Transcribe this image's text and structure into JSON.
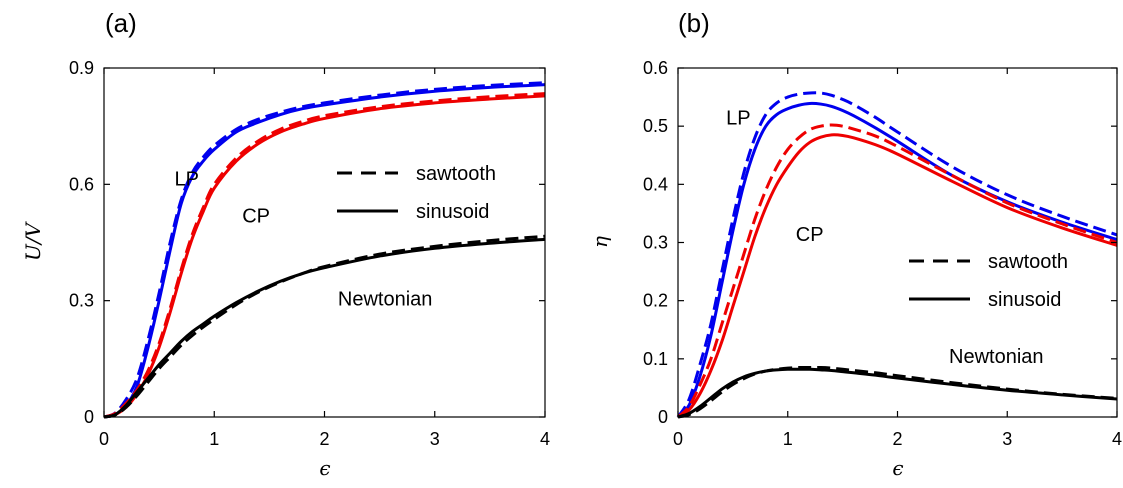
{
  "chart_data": [
    {
      "type": "line",
      "panel_label": "(a)",
      "xlabel": "ϵ",
      "ylabel": "U/V",
      "xlim": [
        0,
        4
      ],
      "ylim": [
        0,
        0.9
      ],
      "xticks": [
        "0",
        "1",
        "2",
        "3",
        "4"
      ],
      "yticks": [
        "0",
        "0.3",
        "0.6",
        "0.9"
      ],
      "grid": false,
      "legend": {
        "placement": "center-right",
        "entries": [
          {
            "label": "sawtooth",
            "style": "dashed"
          },
          {
            "label": "sinusoid",
            "style": "solid"
          }
        ]
      },
      "annotations": [
        {
          "text": "LP",
          "x": 0.75,
          "y": 0.615
        },
        {
          "text": "CP",
          "x": 1.38,
          "y": 0.52
        },
        {
          "text": "Newtonian",
          "x": 2.55,
          "y": 0.305
        }
      ],
      "x": [
        0,
        0.1,
        0.2,
        0.3,
        0.4,
        0.5,
        0.6,
        0.7,
        0.8,
        0.9,
        1.0,
        1.2,
        1.4,
        1.6,
        1.8,
        2.0,
        2.5,
        3.0,
        3.5,
        4.0
      ],
      "series": [
        {
          "model": "LP",
          "waveform": "sinusoid",
          "color": "#0000ee",
          "style": "solid",
          "values": [
            0,
            0.006,
            0.03,
            0.08,
            0.18,
            0.3,
            0.43,
            0.55,
            0.62,
            0.66,
            0.69,
            0.735,
            0.76,
            0.78,
            0.795,
            0.805,
            0.825,
            0.84,
            0.85,
            0.857
          ]
        },
        {
          "model": "LP",
          "waveform": "sawtooth",
          "color": "#0000ee",
          "style": "dashed",
          "values": [
            0,
            0.01,
            0.045,
            0.1,
            0.2,
            0.32,
            0.45,
            0.56,
            0.63,
            0.67,
            0.7,
            0.742,
            0.768,
            0.786,
            0.8,
            0.81,
            0.83,
            0.845,
            0.855,
            0.862
          ]
        },
        {
          "model": "CP",
          "waveform": "sinusoid",
          "color": "#ee0000",
          "style": "solid",
          "values": [
            0,
            0.006,
            0.025,
            0.06,
            0.11,
            0.18,
            0.27,
            0.37,
            0.46,
            0.53,
            0.59,
            0.66,
            0.705,
            0.735,
            0.755,
            0.77,
            0.795,
            0.81,
            0.82,
            0.828
          ]
        },
        {
          "model": "CP",
          "waveform": "sawtooth",
          "color": "#ee0000",
          "style": "dashed",
          "values": [
            0,
            0.009,
            0.035,
            0.07,
            0.12,
            0.19,
            0.28,
            0.38,
            0.47,
            0.54,
            0.6,
            0.668,
            0.712,
            0.742,
            0.762,
            0.777,
            0.8,
            0.815,
            0.826,
            0.834
          ]
        },
        {
          "model": "Newtonian",
          "waveform": "sinusoid",
          "color": "#000000",
          "style": "solid",
          "values": [
            0,
            0.006,
            0.03,
            0.065,
            0.1,
            0.135,
            0.165,
            0.195,
            0.22,
            0.24,
            0.26,
            0.295,
            0.325,
            0.35,
            0.37,
            0.385,
            0.415,
            0.435,
            0.448,
            0.458
          ]
        },
        {
          "model": "Newtonian",
          "waveform": "sawtooth",
          "color": "#000000",
          "style": "dashed",
          "values": [
            0,
            0.005,
            0.025,
            0.055,
            0.09,
            0.125,
            0.155,
            0.185,
            0.21,
            0.232,
            0.252,
            0.29,
            0.322,
            0.348,
            0.37,
            0.388,
            0.42,
            0.44,
            0.455,
            0.466
          ]
        }
      ]
    },
    {
      "type": "line",
      "panel_label": "(b)",
      "xlabel": "ϵ",
      "ylabel": "η",
      "xlim": [
        0,
        4
      ],
      "ylim": [
        0,
        0.6
      ],
      "xticks": [
        "0",
        "1",
        "2",
        "3",
        "4"
      ],
      "yticks": [
        "0",
        "0.1",
        "0.2",
        "0.3",
        "0.4",
        "0.5",
        "0.6"
      ],
      "grid": false,
      "legend": {
        "placement": "center-right",
        "entries": [
          {
            "label": "sawtooth",
            "style": "dashed"
          },
          {
            "label": "sinusoid",
            "style": "solid"
          }
        ]
      },
      "annotations": [
        {
          "text": "LP",
          "x": 0.55,
          "y": 0.515
        },
        {
          "text": "CP",
          "x": 1.2,
          "y": 0.315
        },
        {
          "text": "Newtonian",
          "x": 2.9,
          "y": 0.105
        }
      ],
      "x": [
        0,
        0.1,
        0.2,
        0.3,
        0.4,
        0.5,
        0.6,
        0.7,
        0.8,
        0.9,
        1.0,
        1.1,
        1.2,
        1.3,
        1.4,
        1.5,
        1.6,
        1.8,
        2.0,
        2.5,
        3.0,
        3.5,
        4.0
      ],
      "series": [
        {
          "model": "LP",
          "waveform": "sinusoid",
          "color": "#0000ee",
          "style": "solid",
          "values": [
            0,
            0.02,
            0.07,
            0.14,
            0.23,
            0.32,
            0.4,
            0.46,
            0.5,
            0.52,
            0.53,
            0.536,
            0.539,
            0.538,
            0.534,
            0.527,
            0.518,
            0.497,
            0.474,
            0.415,
            0.37,
            0.335,
            0.305
          ]
        },
        {
          "model": "LP",
          "waveform": "sawtooth",
          "color": "#0000ee",
          "style": "dashed",
          "values": [
            0,
            0.03,
            0.09,
            0.16,
            0.25,
            0.34,
            0.42,
            0.48,
            0.52,
            0.54,
            0.55,
            0.555,
            0.557,
            0.557,
            0.553,
            0.546,
            0.537,
            0.515,
            0.49,
            0.43,
            0.382,
            0.345,
            0.313
          ]
        },
        {
          "model": "CP",
          "waveform": "sinusoid",
          "color": "#ee0000",
          "style": "solid",
          "values": [
            0,
            0.012,
            0.04,
            0.08,
            0.13,
            0.19,
            0.25,
            0.31,
            0.36,
            0.4,
            0.43,
            0.455,
            0.472,
            0.481,
            0.485,
            0.484,
            0.48,
            0.468,
            0.452,
            0.405,
            0.36,
            0.325,
            0.295
          ]
        },
        {
          "model": "CP",
          "waveform": "sawtooth",
          "color": "#ee0000",
          "style": "dashed",
          "values": [
            0,
            0.018,
            0.055,
            0.1,
            0.16,
            0.22,
            0.28,
            0.34,
            0.39,
            0.43,
            0.46,
            0.48,
            0.494,
            0.5,
            0.502,
            0.5,
            0.495,
            0.483,
            0.465,
            0.415,
            0.368,
            0.332,
            0.3
          ]
        },
        {
          "model": "Newtonian",
          "waveform": "sinusoid",
          "color": "#000000",
          "style": "solid",
          "values": [
            0,
            0.006,
            0.018,
            0.033,
            0.048,
            0.06,
            0.069,
            0.075,
            0.079,
            0.081,
            0.082,
            0.082,
            0.082,
            0.081,
            0.08,
            0.078,
            0.076,
            0.072,
            0.067,
            0.056,
            0.046,
            0.038,
            0.031
          ]
        },
        {
          "model": "Newtonian",
          "waveform": "sawtooth",
          "color": "#000000",
          "style": "dashed",
          "values": [
            0,
            0.004,
            0.014,
            0.028,
            0.043,
            0.056,
            0.066,
            0.074,
            0.079,
            0.082,
            0.084,
            0.085,
            0.085,
            0.085,
            0.084,
            0.082,
            0.08,
            0.076,
            0.071,
            0.059,
            0.048,
            0.039,
            0.032
          ]
        }
      ]
    }
  ]
}
